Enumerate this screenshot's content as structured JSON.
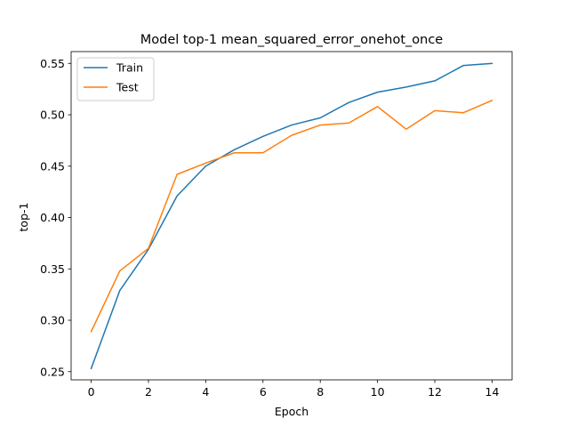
{
  "chart_data": {
    "type": "line",
    "title": "Model top-1 mean_squared_error_onehot_once",
    "xlabel": "Epoch",
    "ylabel": "top-1",
    "xlim": [
      -0.7,
      14.7
    ],
    "ylim": [
      0.242,
      0.5615
    ],
    "xticks": [
      0,
      2,
      4,
      6,
      8,
      10,
      12,
      14
    ],
    "yticks": [
      0.25,
      0.3,
      0.35,
      0.4,
      0.45,
      0.5,
      0.55
    ],
    "xtick_labels": [
      "0",
      "2",
      "4",
      "6",
      "8",
      "10",
      "12",
      "14"
    ],
    "ytick_labels": [
      "0.25",
      "0.30",
      "0.35",
      "0.40",
      "0.45",
      "0.50",
      "0.55"
    ],
    "grid": false,
    "legend_position": "top-left",
    "x": [
      0,
      1,
      2,
      3,
      4,
      5,
      6,
      7,
      8,
      9,
      10,
      11,
      12,
      13,
      14
    ],
    "series": [
      {
        "name": "Train",
        "color": "#1f77b4",
        "values": [
          0.253,
          0.329,
          0.369,
          0.421,
          0.45,
          0.466,
          0.479,
          0.49,
          0.497,
          0.512,
          0.522,
          0.527,
          0.533,
          0.548,
          0.55
        ]
      },
      {
        "name": "Test",
        "color": "#ff7f0e",
        "values": [
          0.289,
          0.348,
          0.37,
          0.442,
          0.453,
          0.463,
          0.463,
          0.48,
          0.49,
          0.492,
          0.508,
          0.486,
          0.504,
          0.502,
          0.514
        ]
      }
    ]
  }
}
